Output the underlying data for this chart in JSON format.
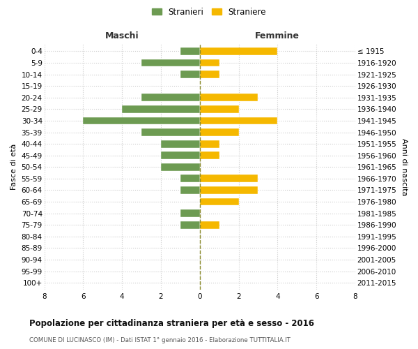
{
  "age_groups": [
    "0-4",
    "5-9",
    "10-14",
    "15-19",
    "20-24",
    "25-29",
    "30-34",
    "35-39",
    "40-44",
    "45-49",
    "50-54",
    "55-59",
    "60-64",
    "65-69",
    "70-74",
    "75-79",
    "80-84",
    "85-89",
    "90-94",
    "95-99",
    "100+"
  ],
  "birth_years": [
    "2011-2015",
    "2006-2010",
    "2001-2005",
    "1996-2000",
    "1991-1995",
    "1986-1990",
    "1981-1985",
    "1976-1980",
    "1971-1975",
    "1966-1970",
    "1961-1965",
    "1956-1960",
    "1951-1955",
    "1946-1950",
    "1941-1945",
    "1936-1940",
    "1931-1935",
    "1926-1930",
    "1921-1925",
    "1916-1920",
    "≤ 1915"
  ],
  "maschi": [
    1,
    3,
    1,
    0,
    3,
    4,
    6,
    3,
    2,
    2,
    2,
    1,
    1,
    0,
    1,
    1,
    0,
    0,
    0,
    0,
    0
  ],
  "femmine": [
    4,
    1,
    1,
    0,
    3,
    2,
    4,
    2,
    1,
    1,
    0,
    3,
    3,
    2,
    0,
    1,
    0,
    0,
    0,
    0,
    0
  ],
  "maschi_color": "#6d9b52",
  "femmine_color": "#f5b800",
  "background_color": "#ffffff",
  "grid_color": "#cccccc",
  "zero_line_color": "#8a8a2a",
  "title": "Popolazione per cittadinanza straniera per età e sesso - 2016",
  "subtitle": "COMUNE DI LUCINASCO (IM) - Dati ISTAT 1° gennaio 2016 - Elaborazione TUTTITALIA.IT",
  "xlabel_left": "Maschi",
  "xlabel_right": "Femmine",
  "ylabel_left": "Fasce di età",
  "ylabel_right": "Anni di nascita",
  "legend_maschi": "Stranieri",
  "legend_femmine": "Straniere",
  "xlim": 8
}
